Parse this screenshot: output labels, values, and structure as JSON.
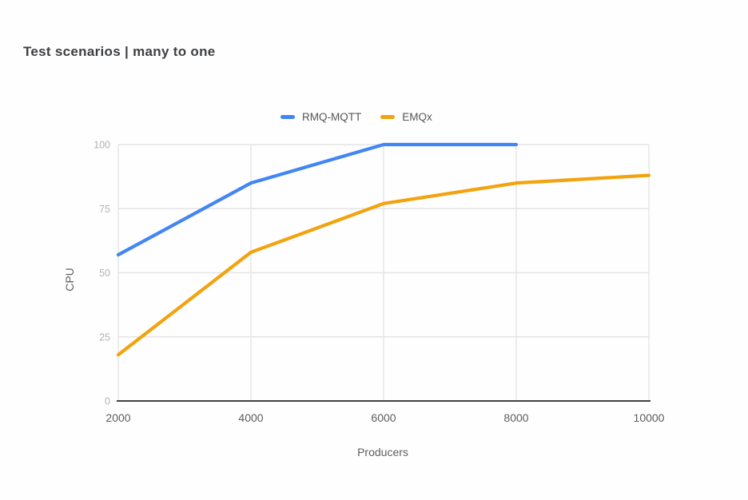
{
  "header": {
    "title": "Test scenarios | many to one"
  },
  "colors": {
    "background": "#fefefe",
    "gridline": "#e4e4e4",
    "axis_line": "#424242",
    "y_tick_label": "#b3b3b3",
    "x_tick_label": "#5c5c5c",
    "axis_title": "#5c5e61",
    "title_text": "#3d3f42",
    "legend_text": "#555555",
    "series_blue": "#4285F4",
    "series_orange": "#F2A30D"
  },
  "chart_data": {
    "type": "line",
    "title": "Test scenarios | many to one",
    "xlabel": "Producers",
    "ylabel": "CPU",
    "xlim": [
      2000,
      10000
    ],
    "ylim": [
      0,
      100
    ],
    "x_ticks": [
      2000,
      4000,
      6000,
      8000,
      10000
    ],
    "y_ticks": [
      0,
      25,
      50,
      75,
      100
    ],
    "grid": true,
    "legend_position": "top-center",
    "series": [
      {
        "name": "RMQ-MQTT",
        "color": "#4285F4",
        "x": [
          2000,
          4000,
          6000,
          8000
        ],
        "values": [
          57,
          85,
          100,
          100
        ]
      },
      {
        "name": "EMQx",
        "color": "#F2A30D",
        "x": [
          2000,
          4000,
          6000,
          8000,
          10000
        ],
        "values": [
          18,
          58,
          77,
          85,
          88
        ]
      }
    ]
  }
}
